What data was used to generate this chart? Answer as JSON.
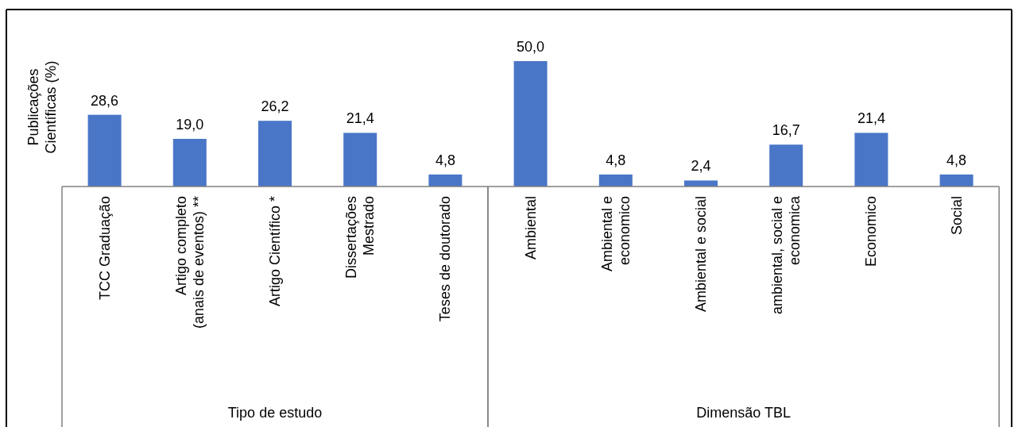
{
  "chart_data": [
    {
      "type": "bar",
      "ylabel": "Publicações\nCientíficas (%)",
      "xlabel": "Tipo de estudo",
      "categories": [
        "TCC Graduação",
        "Artigo completo\n(anais de eventos) **",
        "Artigo Científico *",
        "Dissertações\nMestrado",
        "Teses de doutorado"
      ],
      "values": [
        28.6,
        19.0,
        26.2,
        21.4,
        4.8
      ],
      "value_labels": [
        "28,6",
        "19,0",
        "26,2",
        "21,4",
        "4,8"
      ],
      "color": "#4a76c8"
    },
    {
      "type": "bar",
      "xlabel": "Dimensão TBL",
      "categories": [
        "Ambiental",
        "Ambiental e\neconomico",
        "Ambiental e social",
        "ambiental, social e\neconomica",
        "Economico",
        "Social"
      ],
      "values": [
        50.0,
        4.8,
        2.4,
        16.7,
        21.4,
        4.8
      ],
      "value_labels": [
        "50,0",
        "4,8",
        "2,4",
        "16,7",
        "21,4",
        "4,8"
      ],
      "color": "#4a76c8"
    }
  ]
}
